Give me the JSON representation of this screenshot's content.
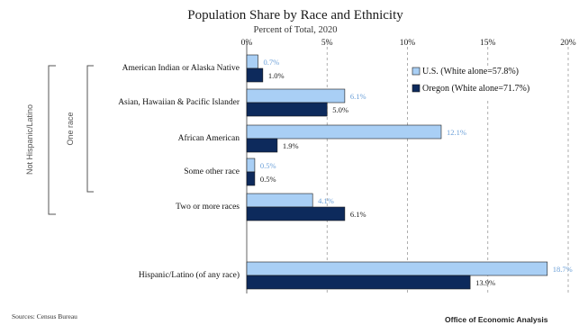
{
  "chart_data": {
    "type": "bar",
    "orientation": "horizontal",
    "title": "Population Share by Race and Ethnicity",
    "subtitle": "Percent of Total, 2020",
    "categories": [
      "American Indian or Alaska Native",
      "Asian, Hawaiian & Pacific Islander",
      "African American",
      "Some other race",
      "Two or more races",
      "Hispanic/Latino (of any race)"
    ],
    "series": [
      {
        "name": "U.S. (White alone=57.8%)",
        "color": "#a9cff5",
        "values": [
          0.7,
          6.1,
          12.1,
          0.5,
          4.1,
          18.7
        ],
        "labels": [
          "0.7%",
          "6.1%",
          "12.1%",
          "0.5%",
          "4.1%",
          "18.7%"
        ]
      },
      {
        "name": "Oregon (White alone=71.7%)",
        "color": "#0d2a5c",
        "values": [
          1.0,
          5.0,
          1.9,
          0.5,
          6.1,
          13.9
        ],
        "labels": [
          "1.0%",
          "5.0%",
          "1.9%",
          "0.5%",
          "6.1%",
          "13.9%"
        ]
      }
    ],
    "xlim": [
      0,
      20
    ],
    "x_ticks": [
      "0%",
      "5%",
      "10%",
      "15%",
      "20%"
    ],
    "tick_axis_position": "top",
    "grid": "vertical dashed",
    "legend_position": "top-right",
    "group_labels": {
      "outer": "Not Hispanic/Latino",
      "inner": "One race"
    }
  },
  "footer": {
    "source": "Sources: Census Bureau",
    "credit": "Office of Economic Analysis"
  }
}
